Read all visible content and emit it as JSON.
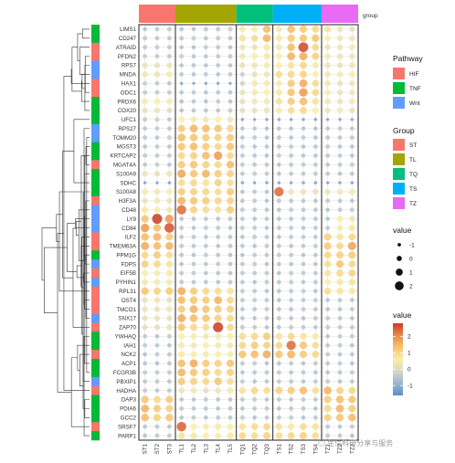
{
  "chart_data": {
    "type": "heatmap",
    "title": "",
    "xlabel": "",
    "ylabel": "",
    "rows": [
      "LIMS1",
      "CD247",
      "ATRAID",
      "PFDN2",
      "RPS7",
      "MNDA",
      "HAX1",
      "ODC1",
      "PRDX6",
      "COX20",
      "UFC1",
      "RPS27",
      "TOMM20",
      "MGST3",
      "KRTCAP2",
      "MGAT4A",
      "S100A9",
      "SDHC",
      "S100A8",
      "H3F3A",
      "CD48",
      "LY9",
      "CD84",
      "ILF2",
      "TMEM63A",
      "PPM1G",
      "FDPS",
      "EIF5B",
      "PYHIN1",
      "RPL31",
      "OST4",
      "TMCO1",
      "SNX17",
      "ZAP70",
      "YWHAQ",
      "IAH1",
      "NCK2",
      "ACP1",
      "FCGR3B",
      "PBXIP1",
      "HADHA",
      "DAP3",
      "PDIA6",
      "GCC2",
      "SRSF7",
      "PARP1"
    ],
    "row_pathway": [
      "TNF",
      "TNF",
      "HIF",
      "HIF",
      "Wnt",
      "Wnt",
      "HIF",
      "HIF",
      "TNF",
      "TNF",
      "TNF",
      "Wnt",
      "Wnt",
      "TNF",
      "TNF",
      "HIF",
      "TNF",
      "TNF",
      "TNF",
      "HIF",
      "Wnt",
      "Wnt",
      "Wnt",
      "HIF",
      "HIF",
      "TNF",
      "Wnt",
      "HIF",
      "Wnt",
      "HIF",
      "HIF",
      "HIF",
      "Wnt",
      "HIF",
      "TNF",
      "TNF",
      "HIF",
      "TNF",
      "TNF",
      "Wnt",
      "HIF",
      "TNF",
      "TNF",
      "TNF",
      "HIF",
      "TNF"
    ],
    "columns": [
      "ST1",
      "ST2",
      "ST3",
      "TL1",
      "TL2",
      "TL3",
      "TL4",
      "TL5",
      "TQ1",
      "TQ2",
      "TQ3",
      "TS1",
      "TS2",
      "TS3",
      "TS4",
      "TZ1",
      "TZ2",
      "TZ3"
    ],
    "column_groups": [
      "ST",
      "ST",
      "ST",
      "TL",
      "TL",
      "TL",
      "TL",
      "TL",
      "TQ",
      "TQ",
      "TQ",
      "TS",
      "TS",
      "TS",
      "TS",
      "TZ",
      "TZ",
      "TZ"
    ],
    "values": [
      [
        -0.6,
        -0.5,
        -0.4,
        -0.5,
        -0.6,
        -0.4,
        -0.5,
        -0.3,
        0.5,
        0.6,
        1.4,
        0.5,
        1.4,
        1.2,
        1.0,
        0.8,
        0.3,
        0.2
      ],
      [
        -0.4,
        -0.5,
        -0.5,
        -0.4,
        -0.3,
        -0.5,
        -0.4,
        -0.5,
        0.8,
        0.9,
        1.5,
        0.7,
        1.2,
        1.3,
        1.3,
        0.6,
        0.4,
        0.4
      ],
      [
        -0.5,
        -0.4,
        -0.5,
        -0.6,
        -0.6,
        -0.4,
        -0.5,
        -0.6,
        0.3,
        0.2,
        0.7,
        0.4,
        1.4,
        2.6,
        1.0,
        0.2,
        0.3,
        0.5
      ],
      [
        -0.3,
        -0.5,
        -0.4,
        -0.3,
        -0.5,
        -0.6,
        -0.5,
        -0.4,
        0.4,
        0.6,
        0.7,
        0.6,
        1.5,
        1.6,
        1.1,
        0.5,
        0.3,
        0.3
      ],
      [
        0.3,
        0.2,
        0.3,
        -0.6,
        -0.5,
        -0.6,
        -0.5,
        -0.6,
        0.2,
        0.3,
        0.5,
        0.6,
        0.8,
        1.0,
        0.5,
        0.3,
        0.2,
        0.4
      ],
      [
        0.4,
        0.3,
        0.5,
        -0.5,
        -0.6,
        -0.4,
        -0.6,
        -0.5,
        -0.3,
        0.2,
        0.3,
        0.9,
        1.0,
        1.1,
        0.6,
        0.4,
        0.5,
        0.6
      ],
      [
        -0.3,
        -0.4,
        -0.5,
        -1.2,
        -1.3,
        -1.2,
        -1.1,
        -1.3,
        -0.2,
        0.4,
        0.5,
        0.5,
        1.2,
        1.6,
        0.9,
        0.4,
        0.2,
        0.3
      ],
      [
        -0.4,
        -0.5,
        -0.4,
        -0.6,
        -0.5,
        -0.6,
        -0.5,
        -0.5,
        0.3,
        0.5,
        0.6,
        0.7,
        1.3,
        1.8,
        1.0,
        0.5,
        0.3,
        0.4
      ],
      [
        0.5,
        0.6,
        0.5,
        -0.6,
        -0.5,
        -0.6,
        -0.4,
        -0.6,
        0.2,
        0.4,
        0.5,
        0.8,
        1.2,
        1.4,
        0.8,
        0.4,
        0.3,
        0.5
      ],
      [
        0.2,
        0.3,
        0.1,
        -0.6,
        -0.5,
        -0.5,
        -0.6,
        -0.4,
        0.1,
        0.2,
        0.3,
        0.5,
        0.9,
        1.0,
        0.6,
        0.3,
        0.4,
        0.2
      ],
      [
        -0.4,
        -0.3,
        -0.5,
        0.6,
        0.5,
        0.4,
        0.6,
        0.3,
        -1.2,
        -1.3,
        -1.2,
        -1.1,
        -1.3,
        -1.2,
        -1.2,
        -1.3,
        -1.2,
        -1.1
      ],
      [
        -0.5,
        -0.4,
        -0.5,
        1.2,
        1.5,
        1.4,
        1.3,
        1.0,
        -0.6,
        -0.5,
        -0.7,
        -0.5,
        -0.6,
        -0.5,
        -0.6,
        -0.5,
        -0.4,
        -0.5
      ],
      [
        -0.4,
        -0.5,
        -0.3,
        1.4,
        1.3,
        1.2,
        1.1,
        1.2,
        -0.5,
        -0.4,
        -0.6,
        -0.5,
        -0.6,
        -0.4,
        -0.6,
        -0.5,
        -0.5,
        -0.4
      ],
      [
        -0.5,
        -0.4,
        -0.5,
        1.3,
        1.4,
        1.2,
        1.0,
        1.3,
        -0.4,
        -0.6,
        -0.5,
        -0.5,
        -0.4,
        -0.6,
        -0.5,
        -0.4,
        -0.6,
        -0.5
      ],
      [
        -0.4,
        -0.5,
        -0.4,
        1.0,
        1.1,
        1.4,
        1.8,
        1.0,
        -0.5,
        -0.5,
        -0.6,
        -0.4,
        -0.5,
        -0.6,
        -0.5,
        -0.5,
        -0.4,
        -0.6
      ],
      [
        -0.5,
        -0.4,
        -0.6,
        1.2,
        1.3,
        1.1,
        1.0,
        1.4,
        -0.4,
        -0.5,
        -0.5,
        -0.6,
        -0.5,
        -0.4,
        -0.5,
        -0.6,
        -0.5,
        -0.4
      ],
      [
        0.3,
        0.2,
        0.4,
        1.7,
        1.3,
        1.5,
        1.2,
        1.1,
        -0.5,
        -0.4,
        -0.5,
        -0.6,
        -0.5,
        -0.5,
        -0.4,
        -0.5,
        -0.6,
        -0.5
      ],
      [
        -1.2,
        -1.3,
        -1.2,
        0.9,
        1.0,
        0.8,
        1.1,
        0.9,
        -1.1,
        -1.3,
        -1.2,
        -1.2,
        -1.3,
        -1.1,
        -1.2,
        -1.3,
        -1.2,
        -1.2
      ],
      [
        0.5,
        0.4,
        0.6,
        1.2,
        1.1,
        1.0,
        0.9,
        1.2,
        -0.6,
        -0.5,
        -0.6,
        2.3,
        0.4,
        0.3,
        0.2,
        0.3,
        0.4,
        0.5
      ],
      [
        0.2,
        0.4,
        0.3,
        1.5,
        1.3,
        1.2,
        1.0,
        1.1,
        -0.5,
        -0.4,
        -0.6,
        -0.4,
        -0.5,
        -0.5,
        -0.6,
        -0.4,
        -0.5,
        -0.6
      ],
      [
        0.7,
        0.5,
        0.4,
        2.3,
        1.1,
        0.9,
        0.8,
        1.2,
        -0.4,
        -0.5,
        -0.5,
        -0.6,
        -0.4,
        -0.5,
        -0.5,
        -0.6,
        -0.5,
        -0.4
      ],
      [
        1.3,
        2.7,
        1.8,
        -0.6,
        -0.5,
        -0.5,
        -0.6,
        -0.4,
        -0.5,
        -0.6,
        -0.5,
        -0.5,
        -0.6,
        -0.4,
        -0.5,
        -0.6,
        0.6,
        0.4
      ],
      [
        1.8,
        1.4,
        2.5,
        -0.5,
        -0.6,
        -0.4,
        -0.5,
        -0.6,
        -0.4,
        -0.5,
        -0.6,
        -0.5,
        -0.5,
        -0.6,
        -0.4,
        -0.5,
        0.5,
        0.7
      ],
      [
        1.4,
        1.5,
        1.2,
        -0.5,
        -0.4,
        -0.6,
        -0.5,
        -0.5,
        -0.6,
        -0.4,
        -0.5,
        -0.6,
        -0.4,
        -0.5,
        -0.6,
        1.1,
        0.8,
        1.0
      ],
      [
        1.6,
        1.4,
        1.5,
        -0.4,
        -0.5,
        -0.5,
        -0.6,
        -0.5,
        -0.5,
        -0.6,
        -0.4,
        -0.5,
        -0.6,
        -0.5,
        -0.4,
        1.2,
        1.0,
        1.7
      ],
      [
        1.0,
        1.2,
        0.9,
        -0.5,
        -0.6,
        -0.4,
        -0.5,
        -0.6,
        -0.6,
        -0.5,
        -0.5,
        -0.4,
        -0.5,
        -0.6,
        -0.5,
        1.0,
        1.1,
        1.2
      ],
      [
        1.1,
        1.0,
        0.8,
        -0.6,
        -0.5,
        -0.5,
        -0.4,
        -0.5,
        -0.5,
        -0.4,
        -0.6,
        -0.5,
        -0.6,
        -0.5,
        -0.6,
        0.9,
        1.3,
        1.0
      ],
      [
        0.6,
        0.5,
        0.7,
        -0.5,
        -0.4,
        -0.6,
        -0.5,
        -0.6,
        -0.4,
        -0.5,
        -0.5,
        -0.6,
        -0.5,
        -0.4,
        -0.5,
        0.8,
        1.0,
        1.1
      ],
      [
        0.4,
        0.5,
        0.5,
        -0.4,
        -0.5,
        -0.5,
        -0.6,
        -0.5,
        -0.5,
        -0.6,
        -0.4,
        -0.5,
        -0.4,
        -0.6,
        -0.5,
        0.6,
        0.7,
        0.8
      ],
      [
        1.3,
        1.1,
        1.2,
        1.6,
        1.2,
        1.0,
        0.9,
        0.8,
        -0.4,
        -0.5,
        -0.6,
        -0.5,
        -0.5,
        -0.4,
        -0.6,
        0.9,
        0.8,
        0.7
      ],
      [
        0.2,
        0.3,
        0.2,
        1.4,
        1.3,
        1.2,
        1.5,
        1.0,
        -0.5,
        -0.4,
        -0.5,
        -0.6,
        -0.5,
        -0.5,
        -0.4,
        -0.6,
        -0.5,
        -0.5
      ],
      [
        0.3,
        0.2,
        0.4,
        1.2,
        1.5,
        1.3,
        1.2,
        1.1,
        -0.6,
        -0.5,
        -0.4,
        -0.5,
        -0.6,
        -0.4,
        -0.5,
        -0.5,
        -0.6,
        -0.4
      ],
      [
        0.2,
        0.3,
        0.2,
        1.6,
        1.4,
        1.3,
        1.1,
        1.0,
        -0.5,
        -0.6,
        -0.5,
        -0.4,
        -0.5,
        -0.6,
        -0.4,
        -0.5,
        -0.5,
        -0.6
      ],
      [
        0.1,
        0.2,
        0.3,
        1.3,
        1.0,
        0.9,
        2.7,
        1.0,
        -0.4,
        -0.5,
        -0.6,
        -0.5,
        -0.4,
        -0.5,
        -0.6,
        -0.4,
        -0.5,
        -0.5
      ],
      [
        -0.5,
        -0.6,
        -0.4,
        0.6,
        0.5,
        0.4,
        0.5,
        0.6,
        0.9,
        1.0,
        1.2,
        0.8,
        1.0,
        0.8,
        0.7,
        -0.6,
        -0.5,
        -0.4
      ],
      [
        -0.4,
        -0.5,
        -0.6,
        0.5,
        0.4,
        0.6,
        0.5,
        0.4,
        1.0,
        1.2,
        1.1,
        1.0,
        2.3,
        1.3,
        0.9,
        -0.5,
        -0.4,
        -0.6
      ],
      [
        -0.6,
        -0.4,
        -0.5,
        0.7,
        0.6,
        0.5,
        0.6,
        0.5,
        1.3,
        1.4,
        1.6,
        1.3,
        1.5,
        1.2,
        1.0,
        -0.4,
        -0.6,
        -0.5
      ],
      [
        -0.5,
        -0.6,
        -0.5,
        1.4,
        1.6,
        1.2,
        1.1,
        1.3,
        -0.5,
        -0.4,
        -0.6,
        -0.5,
        -0.5,
        -0.6,
        -0.4,
        -0.5,
        -0.4,
        -0.6
      ],
      [
        -0.4,
        -0.5,
        -0.4,
        1.5,
        1.3,
        1.2,
        1.0,
        1.1,
        -0.6,
        -0.5,
        -0.5,
        -0.4,
        -0.6,
        -0.5,
        -0.5,
        -0.6,
        -0.5,
        -0.4
      ],
      [
        -0.5,
        -0.4,
        -0.6,
        1.2,
        1.1,
        1.0,
        1.3,
        0.9,
        -0.4,
        -0.6,
        -0.5,
        -0.5,
        -0.4,
        -0.6,
        -0.5,
        -0.4,
        -0.6,
        -0.5
      ],
      [
        -0.4,
        -0.5,
        -0.5,
        0.3,
        0.4,
        0.2,
        0.3,
        0.5,
        0.8,
        1.0,
        0.9,
        1.1,
        1.2,
        1.4,
        0.9,
        1.5,
        1.1,
        1.0
      ],
      [
        1.3,
        1.0,
        1.2,
        -0.5,
        -0.6,
        -0.4,
        -0.5,
        -0.6,
        -0.5,
        -0.4,
        -0.6,
        -0.5,
        -0.6,
        -0.4,
        -0.5,
        1.2,
        1.4,
        1.3
      ],
      [
        1.5,
        1.2,
        1.1,
        -0.4,
        -0.5,
        -0.5,
        -0.6,
        -0.4,
        -0.6,
        -0.5,
        -0.4,
        -0.6,
        -0.5,
        -0.5,
        -0.6,
        1.0,
        1.5,
        1.2
      ],
      [
        1.4,
        1.1,
        1.3,
        -0.6,
        -0.4,
        -0.6,
        -0.5,
        -0.5,
        -0.4,
        -0.6,
        -0.5,
        -0.5,
        -0.4,
        -0.6,
        -0.5,
        1.1,
        1.3,
        1.4
      ],
      [
        -0.5,
        -0.4,
        -0.6,
        2.4,
        0.6,
        0.5,
        0.7,
        0.6,
        0.8,
        0.9,
        1.0,
        0.8,
        0.7,
        0.9,
        0.8,
        -0.5,
        -0.6,
        -0.4
      ],
      [
        -0.6,
        -0.5,
        -0.4,
        0.8,
        0.7,
        0.6,
        0.5,
        0.7,
        1.0,
        0.9,
        1.1,
        0.9,
        1.0,
        1.1,
        0.9,
        -0.4,
        -0.5,
        -0.6
      ]
    ],
    "legends": {
      "pathway": {
        "title": "Pathway",
        "items": [
          {
            "label": "HIF",
            "color": "#F8766D"
          },
          {
            "label": "TNF",
            "color": "#00BA38"
          },
          {
            "label": "Wnt",
            "color": "#619CFF"
          }
        ]
      },
      "group": {
        "title": "Group",
        "items": [
          {
            "label": "ST",
            "color": "#F8766D"
          },
          {
            "label": "TL",
            "color": "#A3A500"
          },
          {
            "label": "TQ",
            "color": "#00BF7D"
          },
          {
            "label": "TS",
            "color": "#00B0F6"
          },
          {
            "label": "TZ",
            "color": "#E76BF3"
          }
        ]
      },
      "size": {
        "title": "value",
        "breaks": [
          "-1",
          "0",
          "1",
          "2"
        ],
        "break_values": [
          -1,
          0,
          1,
          2
        ]
      },
      "color": {
        "title": "value",
        "breaks": [
          "2",
          "1",
          "0",
          "-1"
        ],
        "break_values": [
          2,
          1,
          0,
          -1
        ],
        "range": [
          -1.6,
          2.8
        ],
        "palette": [
          "#5E8DC4",
          "#9BB6D3",
          "#D8D6C8",
          "#F8EFA8",
          "#F6C470",
          "#EA8A4A",
          "#C93A2E"
        ]
      }
    },
    "column_annotation_label": "group",
    "grid": true
  },
  "watermark": "◎ 生信科研分享与服务"
}
